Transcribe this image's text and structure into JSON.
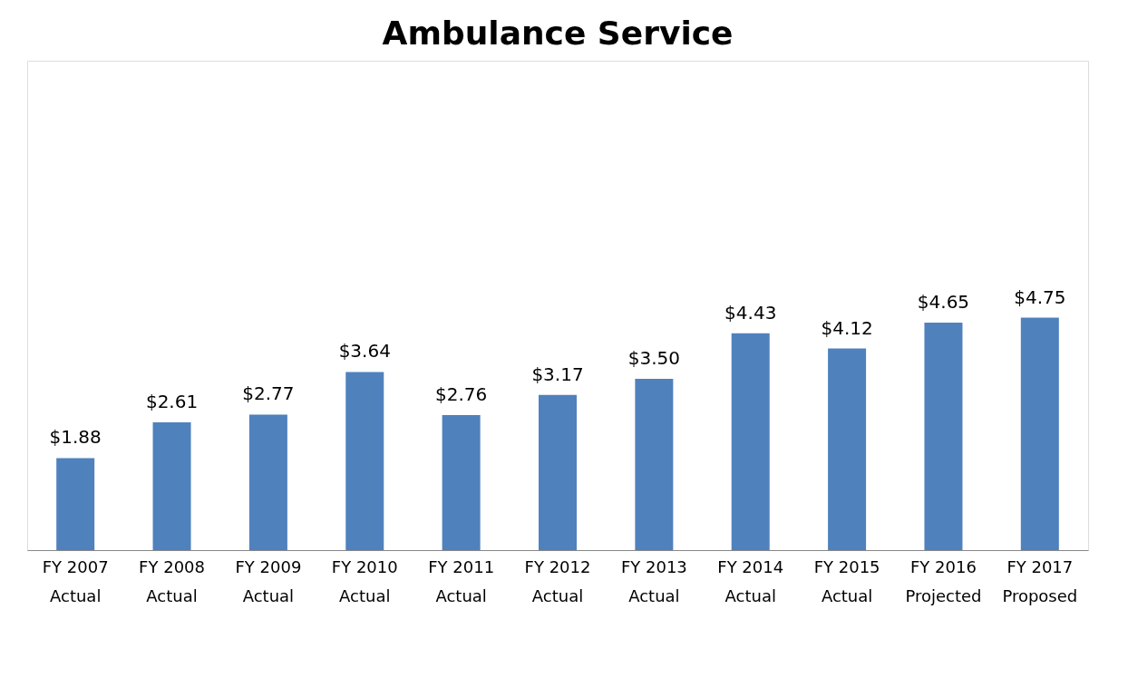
{
  "chart_data": {
    "type": "bar",
    "title": "Ambulance Service",
    "categories": [
      "FY 2007\nActual",
      "FY 2008\nActual",
      "FY 2009\nActual",
      "FY 2010\nActual",
      "FY 2011\nActual",
      "FY 2012\nActual",
      "FY 2013\nActual",
      "FY 2014\nActual",
      "FY 2015\nActual",
      "FY 2016\nProjected",
      "FY 2017\nProposed"
    ],
    "values": [
      1.88,
      2.61,
      2.77,
      3.64,
      2.76,
      3.17,
      3.5,
      4.43,
      4.12,
      4.65,
      4.75
    ],
    "value_labels": [
      "$1.88",
      "$2.61",
      "$2.77",
      "$3.64",
      "$2.76",
      "$3.17",
      "$3.50",
      "$4.43",
      "$4.12",
      "$4.65",
      "$4.75"
    ],
    "color": "#4f81bd",
    "ylim": [
      0,
      10
    ],
    "tick_labels": "x"
  }
}
